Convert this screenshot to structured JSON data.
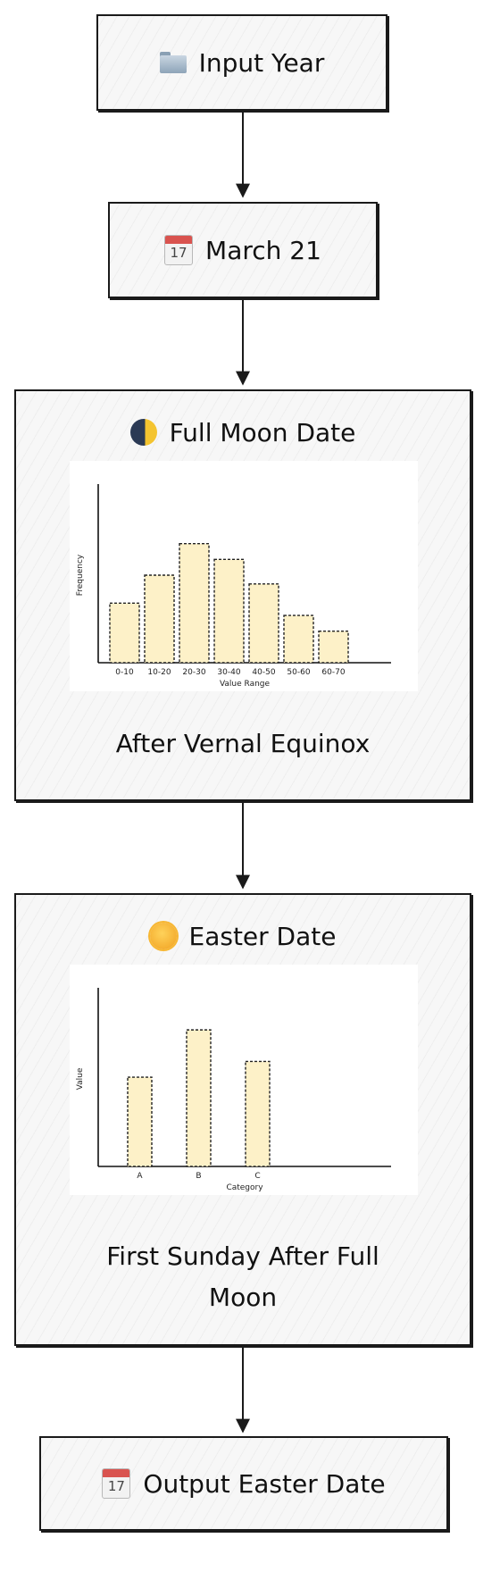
{
  "nodes": {
    "input_year": {
      "icon": "folder-icon",
      "label": "Input Year"
    },
    "march21": {
      "icon": "calendar-icon",
      "label": "March 21",
      "icon_text": "17"
    },
    "full_moon": {
      "icon": "moon-icon",
      "label": "Full Moon Date",
      "subtitle": "After Vernal Equinox"
    },
    "easter": {
      "icon": "sun-face-icon",
      "label": "Easter Date",
      "subtitle": "First Sunday After Full Moon"
    },
    "output": {
      "icon": "calendar-icon",
      "label": "Output Easter Date",
      "icon_text": "17"
    }
  },
  "colors": {
    "bar_fill": "#fdf1c8",
    "bar_stroke": "#222222",
    "node_fill": "#f7f7f7",
    "stroke": "#1a1a1a"
  },
  "chart_data": [
    {
      "type": "bar",
      "categories": [
        "0-10",
        "10-20",
        "20-30",
        "30-40",
        "40-50",
        "50-60",
        "60-70"
      ],
      "values": [
        34,
        50,
        68,
        59,
        45,
        27,
        18
      ],
      "xlabel": "Value Range",
      "ylabel": "Frequency",
      "ylim": [
        0,
        100
      ],
      "grid": false
    },
    {
      "type": "bar",
      "categories": [
        "A",
        "B",
        "C"
      ],
      "values": [
        51,
        78,
        60
      ],
      "xlabel": "Category",
      "ylabel": "Value",
      "ylim": [
        0,
        100
      ],
      "grid": false
    }
  ]
}
